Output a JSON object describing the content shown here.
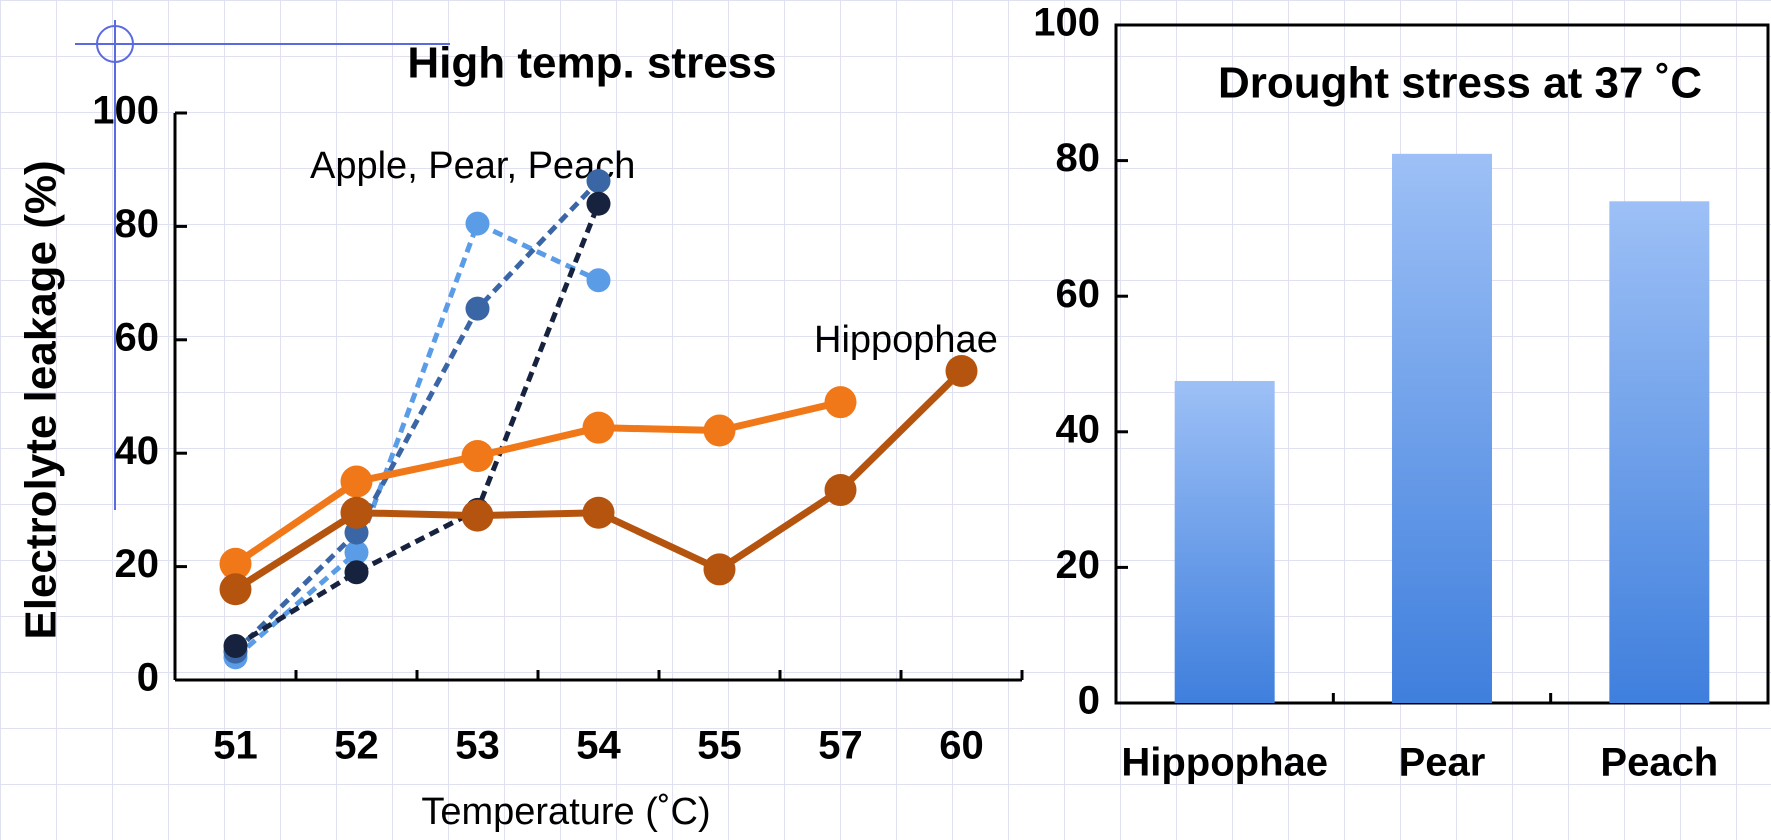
{
  "chart_data": [
    {
      "type": "line",
      "title": "High temp. stress",
      "x_label": "Temperature (˚C)",
      "y_label": "Electrolyte leakage (%)",
      "annotations": [
        "Apple, Pear, Peach",
        "Hippophae"
      ],
      "categories": [
        "51",
        "52",
        "53",
        "54",
        "55",
        "57",
        "60"
      ],
      "series": [
        {
          "color": "#5b9ce6",
          "dashed": true,
          "values": [
            4,
            22.5,
            80.5,
            70.5,
            null,
            null,
            null
          ]
        },
        {
          "color": "#3a66a6",
          "dashed": true,
          "values": [
            5,
            26,
            65.5,
            88,
            null,
            null,
            null
          ]
        },
        {
          "color": "#16223e",
          "dashed": true,
          "values": [
            6,
            19,
            30,
            84,
            null,
            null,
            null
          ]
        },
        {
          "color": "#f07818",
          "dashed": false,
          "values": [
            20.5,
            35,
            39.5,
            44.5,
            44,
            49,
            null
          ]
        },
        {
          "color": "#b5540e",
          "dashed": false,
          "values": [
            16,
            29.5,
            29,
            29.5,
            19.5,
            33.5,
            54.5
          ]
        }
      ],
      "ylim": [
        0,
        100
      ],
      "yticks": [
        0,
        20,
        40,
        60,
        80,
        100
      ]
    },
    {
      "type": "bar",
      "title": "Drought stress at 37 ˚C",
      "categories": [
        "Hippophae",
        "Pear",
        "Peach"
      ],
      "values": [
        47.5,
        81,
        74
      ],
      "color": "#4a86e0",
      "ylim": [
        0,
        100
      ],
      "yticks": [
        0,
        20,
        40,
        60,
        80,
        100
      ]
    }
  ]
}
